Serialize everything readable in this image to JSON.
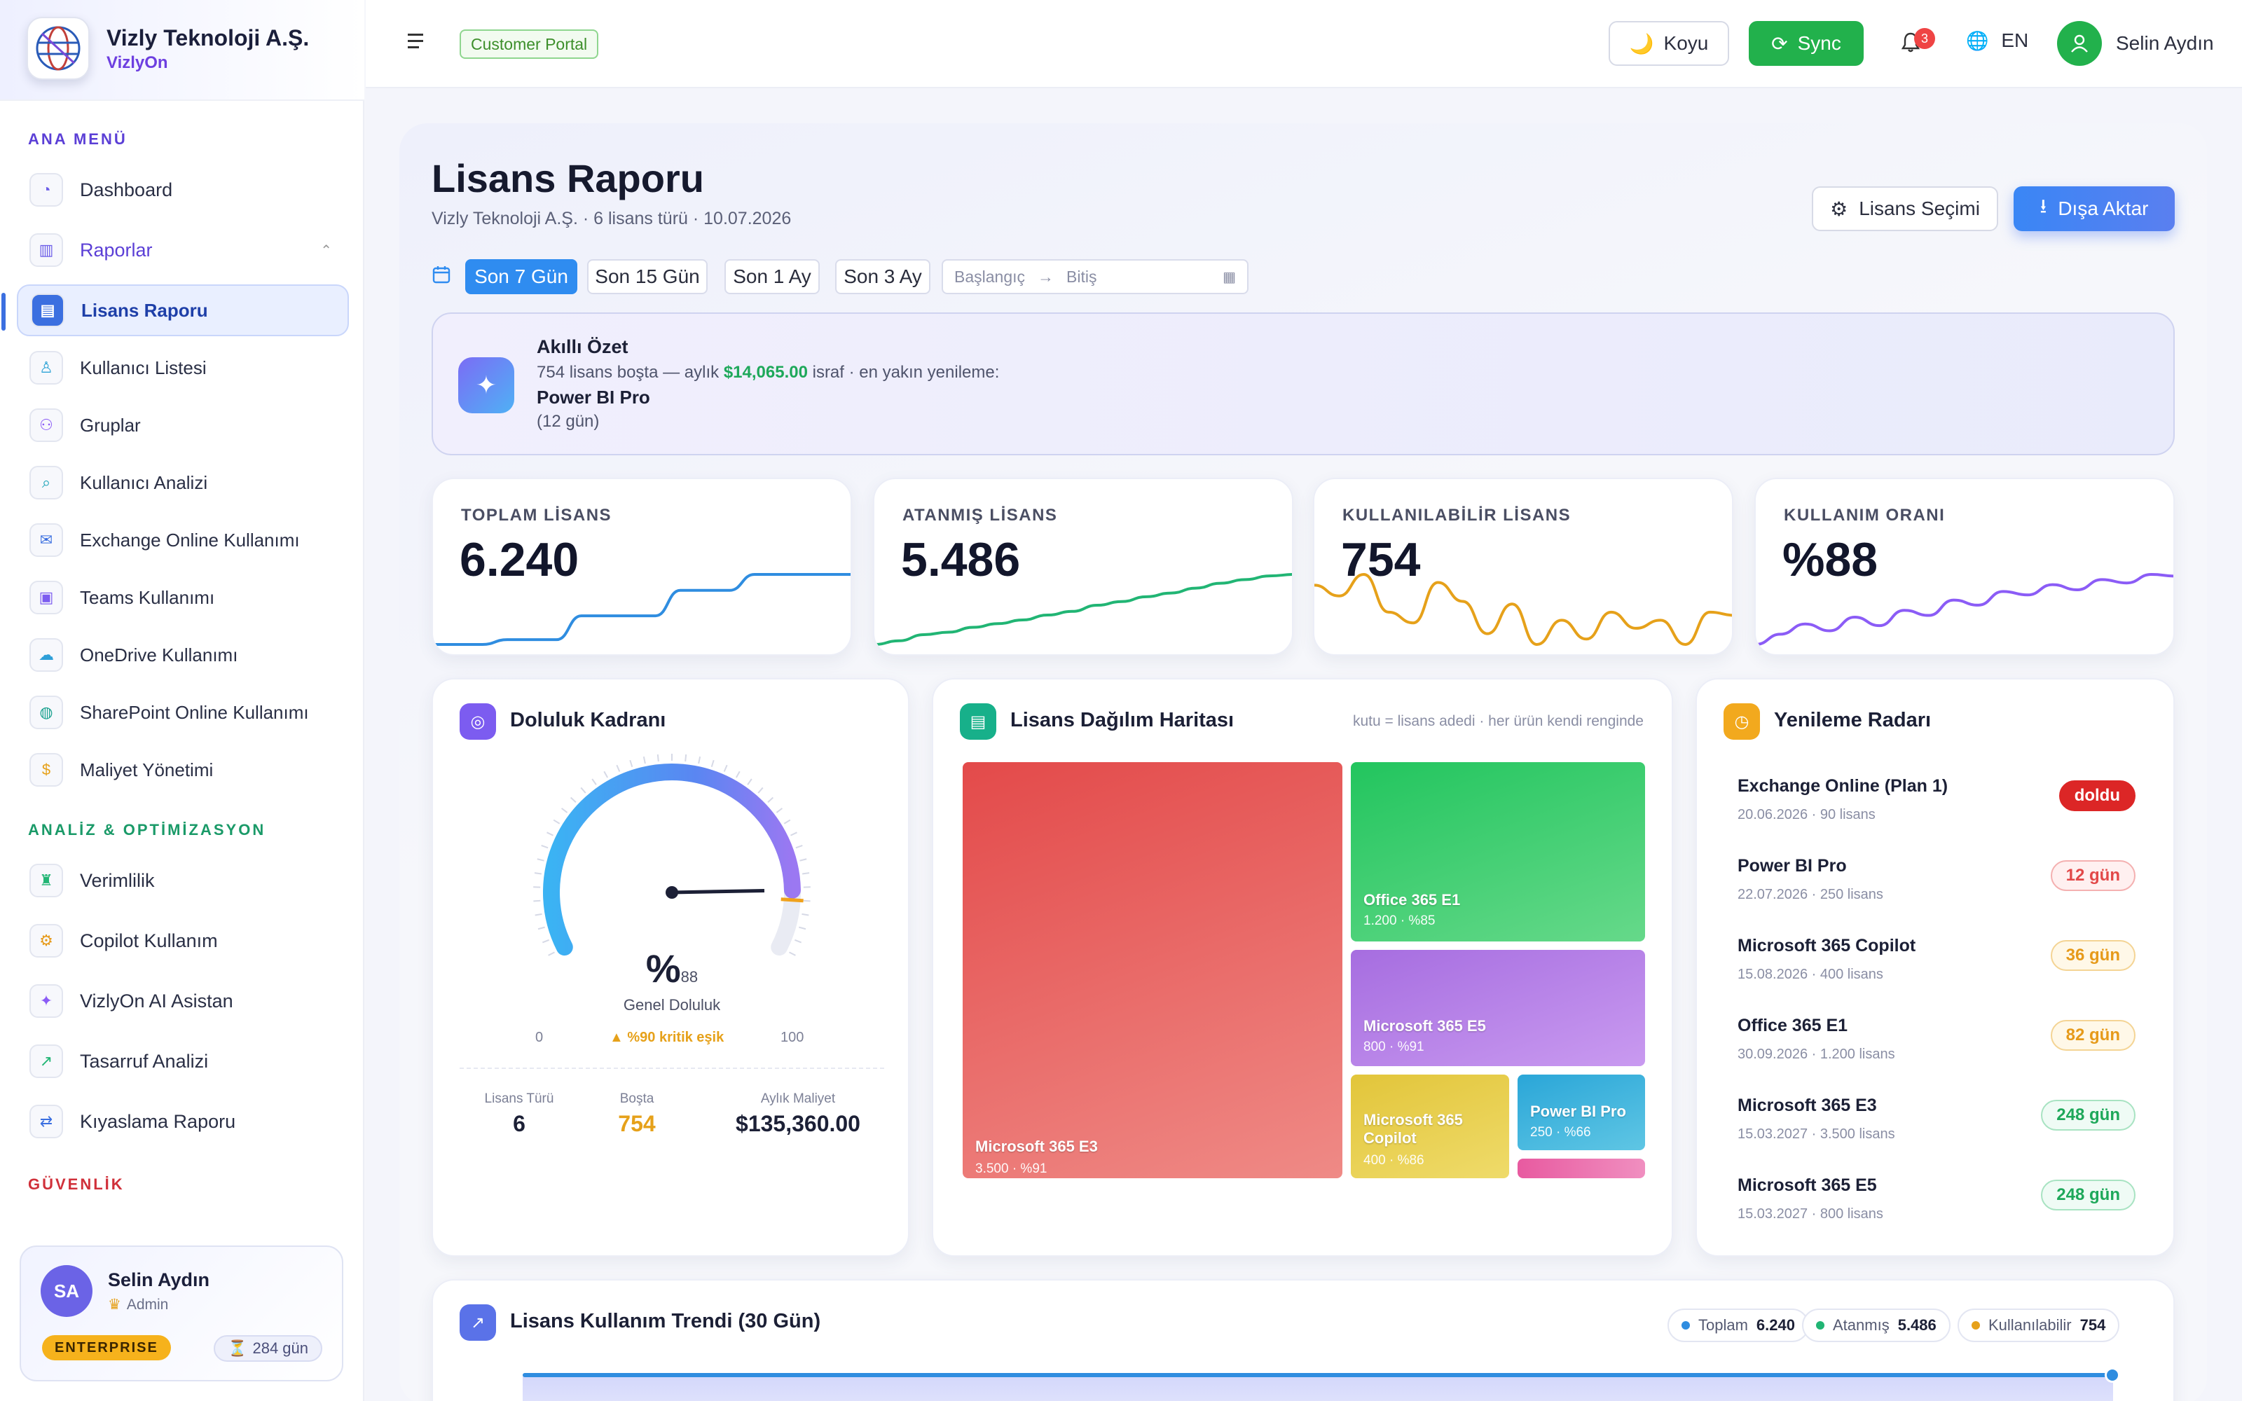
{
  "brand": {
    "name": "Vizly Teknoloji A.Ş.",
    "product": "VizlyOn"
  },
  "sidebar": {
    "sections": {
      "main": "ANA MENÜ",
      "analysis": "ANALİZ & OPTİMİZASYON",
      "security": "GÜVENLİK"
    },
    "main_items": [
      {
        "label": "Dashboard",
        "icon": "dashboard-icon"
      },
      {
        "label": "Raporlar",
        "icon": "bar-chart-icon"
      }
    ],
    "report_items": [
      {
        "label": "Lisans Raporu",
        "icon": "license-icon"
      },
      {
        "label": "Kullanıcı Listesi",
        "icon": "user-icon"
      },
      {
        "label": "Gruplar",
        "icon": "group-icon"
      },
      {
        "label": "Kullanıcı Analizi",
        "icon": "search-icon"
      },
      {
        "label": "Exchange Online Kullanımı",
        "icon": "mail-icon"
      },
      {
        "label": "Teams Kullanımı",
        "icon": "video-icon"
      },
      {
        "label": "OneDrive Kullanımı",
        "icon": "cloud-icon"
      },
      {
        "label": "SharePoint Online Kullanımı",
        "icon": "globe-icon"
      },
      {
        "label": "Maliyet Yönetimi",
        "icon": "dollar-icon"
      }
    ],
    "analysis_items": [
      {
        "label": "Verimlilik",
        "icon": "trophy-icon"
      },
      {
        "label": "Copilot Kullanım",
        "icon": "robot-icon"
      },
      {
        "label": "VizlyOn AI Asistan",
        "icon": "sparkle-icon"
      },
      {
        "label": "Tasarruf Analizi",
        "icon": "trend-icon"
      },
      {
        "label": "Kıyaslama Raporu",
        "icon": "swap-icon"
      }
    ],
    "user": {
      "initials": "SA",
      "name": "Selin Aydın",
      "role": "Admin",
      "plan": "ENTERPRISE",
      "days": "284 gün"
    }
  },
  "topbar": {
    "portal_tag": "Customer Portal",
    "theme_label": "Koyu",
    "sync_label": "Sync",
    "notification_count": "3",
    "lang": "EN",
    "user_name": "Selin Aydın"
  },
  "page": {
    "title": "Lisans Raporu",
    "subtitle": "Vizly Teknoloji A.Ş. · 6 lisans türü · 10.07.2026",
    "license_select_label": "Lisans Seçimi",
    "export_label": "Dışa Aktar",
    "ranges": [
      "Son 7 Gün",
      "Son 15 Gün",
      "Son 1 Ay",
      "Son 3 Ay"
    ],
    "date_start_placeholder": "Başlangıç",
    "date_end_placeholder": "Bitiş"
  },
  "summary": {
    "title": "Akıllı Özet",
    "text_before": "754 lisans boşta — aylık",
    "amount": "$14,065.00",
    "text_after": "israf · en yakın yenileme:",
    "product": "Power BI Pro",
    "days": "(12 gün)"
  },
  "kpis": [
    {
      "label": "TOPLAM LİSANS",
      "value": "6.240",
      "color": "#2f8de0",
      "trend": [
        6020,
        6020,
        6020,
        6035,
        6035,
        6035,
        6110,
        6110,
        6110,
        6110,
        6190,
        6190,
        6190,
        6240,
        6240,
        6240,
        6240,
        6240
      ]
    },
    {
      "label": "ATANMIŞ LİSANS",
      "value": "5.486",
      "color": "#21b574",
      "trend": [
        5200,
        5215,
        5240,
        5250,
        5270,
        5285,
        5300,
        5320,
        5335,
        5360,
        5375,
        5395,
        5410,
        5430,
        5450,
        5465,
        5480,
        5486
      ]
    },
    {
      "label": "KULLANILABİLİR LİSANS",
      "value": "754",
      "color": "#e6a11a",
      "trend": [
        810,
        790,
        830,
        760,
        740,
        815,
        780,
        720,
        775,
        700,
        745,
        710,
        760,
        730,
        745,
        700,
        760,
        754
      ]
    },
    {
      "label": "KULLANIM ORANI",
      "value": "%88",
      "color": "#8b5cf6",
      "trend": [
        84,
        84.6,
        85.2,
        84.8,
        85.6,
        85.1,
        86.0,
        85.7,
        86.6,
        86.3,
        87.1,
        86.9,
        87.5,
        87.2,
        87.8,
        87.6,
        88.1,
        88
      ]
    }
  ],
  "gauge": {
    "title": "Doluluk Kadranı",
    "value": 88,
    "value_prefix": "%",
    "value_suffix": "88",
    "caption": "Genel Doluluk",
    "min_label": "0",
    "max_label": "100",
    "threshold_label": "%90 kritik eşik",
    "threshold": 90,
    "stats": [
      {
        "label": "Lisans Türü",
        "value": "6",
        "color": "#1c2036"
      },
      {
        "label": "Boşta",
        "value": "754",
        "color": "#e6a11a"
      },
      {
        "label": "Aylık Maliyet",
        "value": "$135,360.00",
        "color": "#1c2036"
      }
    ]
  },
  "treemap": {
    "title": "Lisans Dağılım Haritası",
    "hint": "kutu = lisans adedi · her ürün kendi renginde",
    "items": [
      {
        "name": "Microsoft 365 E3",
        "sub": "3.500 · %91",
        "count": 3500
      },
      {
        "name": "Office 365 E1",
        "sub": "1.200 · %85",
        "count": 1200
      },
      {
        "name": "Microsoft 365 E5",
        "sub": "800 · %91",
        "count": 800
      },
      {
        "name": "Microsoft 365 Copilot",
        "sub": "400 · %86",
        "count": 400
      },
      {
        "name": "Power BI Pro",
        "sub": "250 · %66",
        "count": 250
      },
      {
        "name": "",
        "sub": "",
        "count": 90
      }
    ]
  },
  "renewals": {
    "title": "Yenileme Radarı",
    "items": [
      {
        "name": "Exchange Online (Plan 1)",
        "sub": "20.06.2026 · 90 lisans",
        "badge": "doldu",
        "level": "expired"
      },
      {
        "name": "Power BI Pro",
        "sub": "22.07.2026 · 250 lisans",
        "badge": "12 gün",
        "level": "urgent"
      },
      {
        "name": "Microsoft 365 Copilot",
        "sub": "15.08.2026 · 400 lisans",
        "badge": "36 gün",
        "level": "warn"
      },
      {
        "name": "Office 365 E1",
        "sub": "30.09.2026 · 1.200 lisans",
        "badge": "82 gün",
        "level": "warn"
      },
      {
        "name": "Microsoft 365 E3",
        "sub": "15.03.2027 · 3.500 lisans",
        "badge": "248 gün",
        "level": "ok"
      },
      {
        "name": "Microsoft 365 E5",
        "sub": "15.03.2027 · 800 lisans",
        "badge": "248 gün",
        "level": "ok"
      }
    ]
  },
  "trend": {
    "title": "Lisans Kullanım Trendi (30 Gün)",
    "legend": [
      {
        "label": "Toplam",
        "value": "6.240",
        "color": "#2f8de0"
      },
      {
        "label": "Atanmış",
        "value": "5.486",
        "color": "#21b574"
      },
      {
        "label": "Kullanılabilir",
        "value": "754",
        "color": "#e6a11a"
      }
    ]
  },
  "colors": {
    "accent": "#2f8cf0",
    "brand_purple": "#6d3fe0",
    "success": "#22b14c"
  }
}
